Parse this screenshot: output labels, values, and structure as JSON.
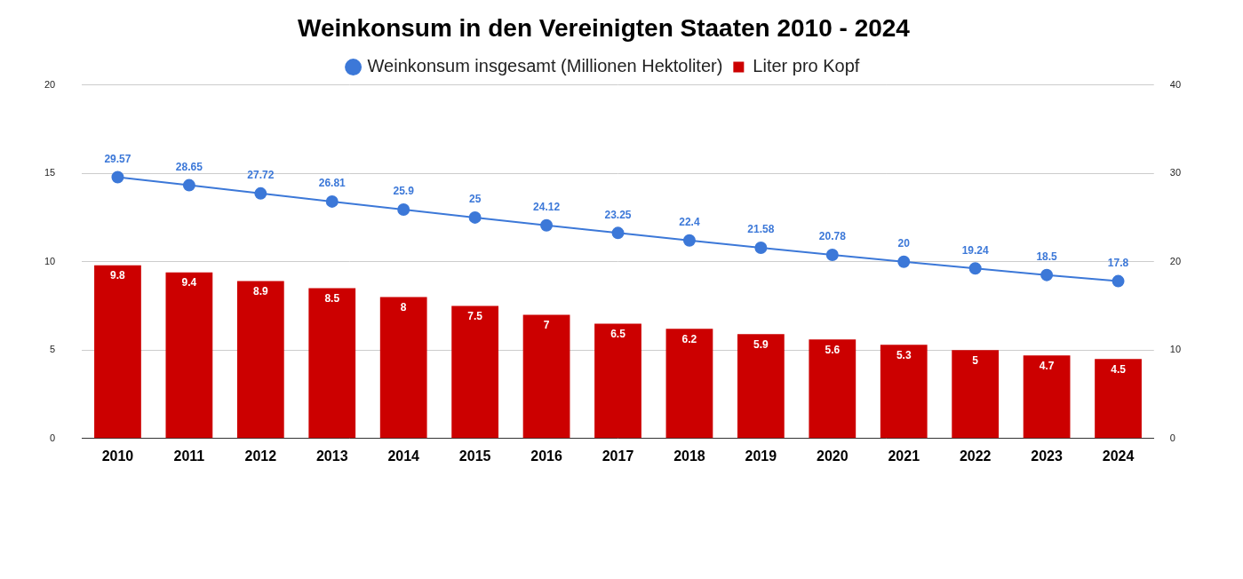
{
  "chart_data": {
    "type": "bar",
    "title": "Weinkonsum in den Vereinigten Staaten 2010 - 2024",
    "categories": [
      "2010",
      "2011",
      "2012",
      "2013",
      "2014",
      "2015",
      "2016",
      "2017",
      "2018",
      "2019",
      "2020",
      "2021",
      "2022",
      "2023",
      "2024"
    ],
    "series": [
      {
        "name": "Liter pro Kopf",
        "type": "bar",
        "color": "#cc0000",
        "marker": "square",
        "values": [
          9.8,
          9.4,
          8.9,
          8.5,
          8,
          7.5,
          7,
          6.5,
          6.2,
          5.9,
          5.6,
          5.3,
          5,
          4.7,
          4.5
        ]
      },
      {
        "name": "Weinkonsum insgesamt (Millionen Hektoliter)",
        "type": "line",
        "color": "#3c78d8",
        "marker": "circle",
        "axis": "y2",
        "values": [
          29.57,
          28.65,
          27.72,
          26.81,
          25.9,
          25,
          24.12,
          23.25,
          22.4,
          21.58,
          20.78,
          20,
          19.24,
          18.5,
          17.8
        ]
      }
    ],
    "ylim": [
      0,
      20
    ],
    "yticks": [
      0,
      5,
      10,
      15,
      20
    ],
    "y2lim": [
      0,
      40
    ],
    "y2ticks": [
      0,
      10,
      20,
      30,
      40
    ],
    "grid": true,
    "legend": "top",
    "data_labels": true
  }
}
